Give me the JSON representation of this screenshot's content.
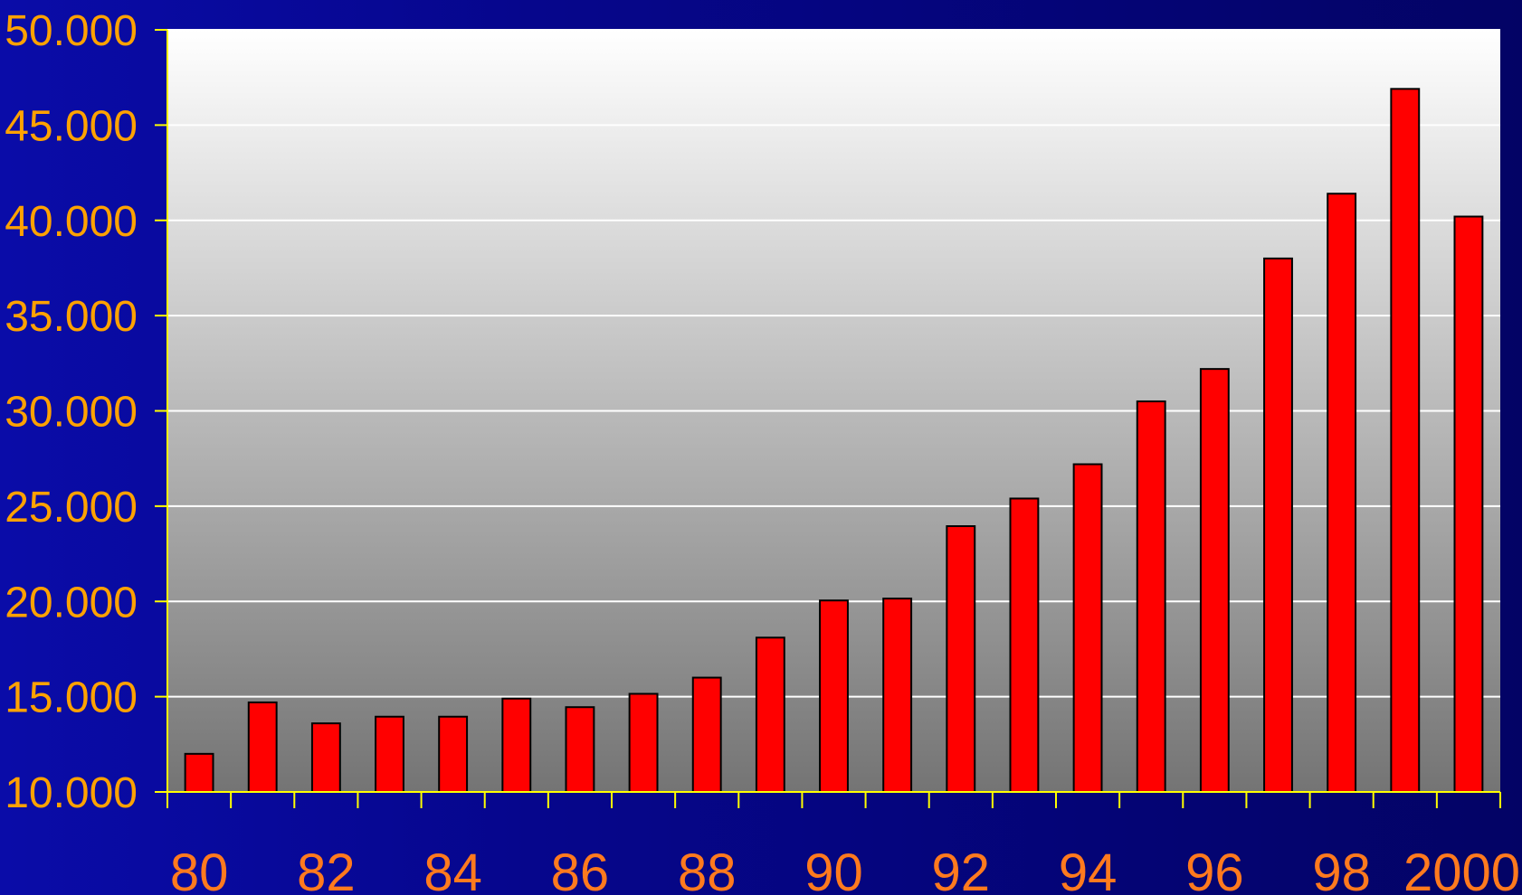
{
  "chart_data": {
    "type": "bar",
    "title": "",
    "xlabel": "",
    "ylabel": "",
    "categories": [
      "80",
      "81",
      "82",
      "83",
      "84",
      "85",
      "86",
      "87",
      "88",
      "89",
      "90",
      "91",
      "92",
      "93",
      "94",
      "95",
      "96",
      "97",
      "98",
      "99",
      "2000"
    ],
    "x_tick_labels": [
      "80",
      "82",
      "84",
      "86",
      "88",
      "90",
      "92",
      "94",
      "96",
      "98",
      "2000"
    ],
    "y_tick_labels": [
      "10.000",
      "15.000",
      "20.000",
      "25.000",
      "30.000",
      "35.000",
      "40.000",
      "45.000",
      "50.000"
    ],
    "y_ticks": [
      10000,
      15000,
      20000,
      25000,
      30000,
      35000,
      40000,
      45000,
      50000
    ],
    "values": [
      12000,
      14700,
      13600,
      13950,
      13950,
      14900,
      14450,
      15150,
      16000,
      18100,
      20050,
      20150,
      23950,
      25400,
      27200,
      30500,
      32200,
      38000,
      41400,
      46900,
      40200
    ],
    "ylim": [
      10000,
      50000
    ],
    "grid": true,
    "legend": "none",
    "colors": {
      "bar": "#ff0000",
      "bar_edge": "#000000",
      "axis": "#ffff00",
      "gridline": "#ffffff",
      "ytick_text": "#ffa200",
      "xtick_text": "#ff7a1e",
      "plot_top": "#ffffff",
      "plot_bottom": "#747474"
    }
  }
}
